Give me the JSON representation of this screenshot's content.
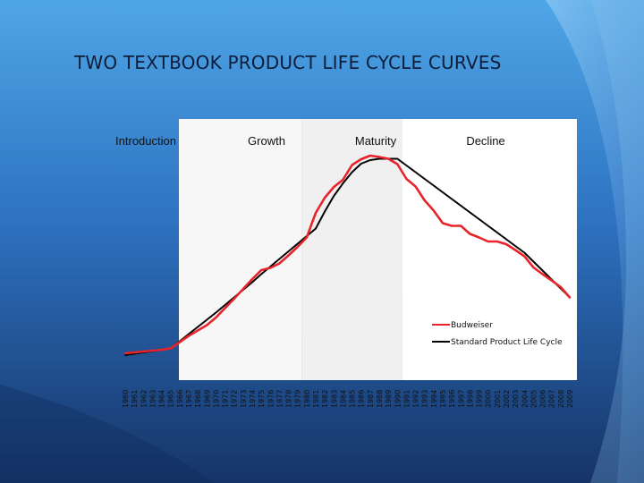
{
  "slide": {
    "title": "TWO TEXTBOOK PRODUCT LIFE CYCLE CURVES"
  },
  "chart_data": {
    "type": "line",
    "phases": [
      "Introduction",
      "Growth",
      "Maturity",
      "Decline"
    ],
    "x": [
      1960,
      1961,
      1962,
      1963,
      1964,
      1965,
      1966,
      1967,
      1968,
      1969,
      1970,
      1971,
      1972,
      1973,
      1974,
      1975,
      1976,
      1977,
      1978,
      1979,
      1980,
      1981,
      1982,
      1983,
      1984,
      1985,
      1986,
      1987,
      1988,
      1989,
      1990,
      1991,
      1992,
      1993,
      1994,
      1995,
      1996,
      1997,
      1998,
      1999,
      2000,
      2001,
      2002,
      2003,
      2004,
      2005,
      2006,
      2007,
      2008,
      2009
    ],
    "series": [
      {
        "name": "Budweiser",
        "color": "#e8232a",
        "values": [
          6.0,
          6.2,
          6.4,
          6.6,
          6.8,
          7.1,
          8.5,
          9.9,
          11.1,
          12.3,
          14.0,
          16.1,
          18.2,
          20.4,
          22.6,
          24.6,
          25.1,
          26.1,
          27.9,
          29.8,
          31.9,
          37.4,
          40.8,
          43.2,
          44.8,
          48.1,
          49.4,
          50.2,
          49.9,
          49.5,
          48.3,
          45.0,
          43.3,
          40.2,
          37.9,
          35.1,
          34.5,
          34.5,
          32.7,
          31.9,
          31.0,
          31.0,
          30.4,
          29.1,
          27.7,
          25.2,
          23.7,
          22.3,
          20.8,
          18.5
        ]
      },
      {
        "name": "Standard Product Life Cycle",
        "color": "#000000",
        "values": [
          5.6,
          5.9,
          6.2,
          6.5,
          6.8,
          7.1,
          8.7,
          10.3,
          11.9,
          13.5,
          15.1,
          16.8,
          18.5,
          20.2,
          21.9,
          23.7,
          25.4,
          27.1,
          28.8,
          30.5,
          32.2,
          33.9,
          37.7,
          41.2,
          44.0,
          46.5,
          48.4,
          49.2,
          49.5,
          49.5,
          49.5,
          48.0,
          46.5,
          45.0,
          43.5,
          42.0,
          40.5,
          39.0,
          37.5,
          36.0,
          34.5,
          33.0,
          31.5,
          30.0,
          28.5,
          26.5,
          24.5,
          22.5,
          20.5,
          18.5
        ]
      }
    ],
    "shaded_bands": [
      [
        1980,
        1990
      ]
    ],
    "legend": "lower-right inside plot",
    "grid": false
  }
}
